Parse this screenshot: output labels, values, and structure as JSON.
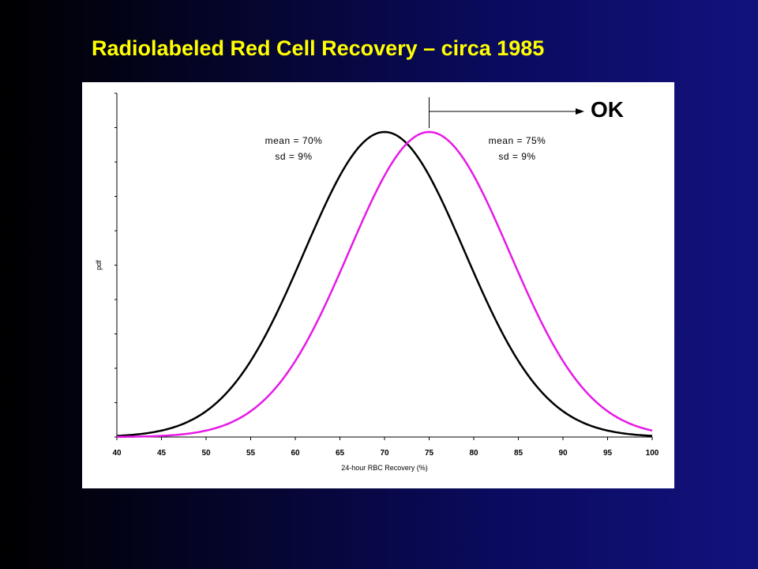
{
  "slide": {
    "title": "Radiolabeled Red Cell Recovery – circa 1985",
    "title_color": "#ffff00"
  },
  "annotations": {
    "ok": "OK",
    "left_mean": "mean = 70%",
    "left_sd": "sd = 9%",
    "right_mean": "mean = 75%",
    "right_sd": "sd = 9%",
    "threshold": 75
  },
  "chart_data": {
    "type": "line",
    "xlabel": "24-hour RBC Recovery (%)",
    "ylabel": "pdf",
    "xlim": [
      40,
      100
    ],
    "x_ticks": [
      40,
      45,
      50,
      55,
      60,
      65,
      70,
      75,
      80,
      85,
      90,
      95,
      100
    ],
    "y_tick_labels_shown": false,
    "series": [
      {
        "mean": 70,
        "sd": 9,
        "color": "#000000"
      },
      {
        "mean": 75,
        "sd": 9,
        "color": "#e619e6"
      }
    ]
  }
}
